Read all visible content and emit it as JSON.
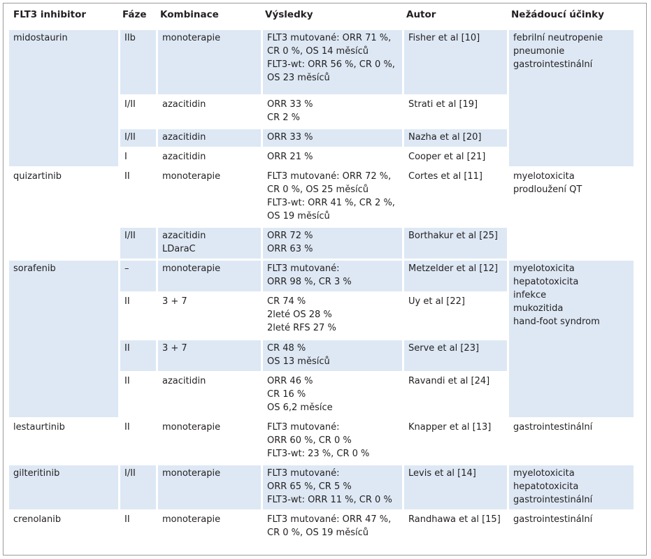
{
  "headers": [
    "FLT3 inhibitor",
    "Fáze",
    "Kombinace",
    "Výsledky",
    "Autor",
    "Nežádoucí účinky"
  ],
  "groups": [
    {
      "drug": "midostaurin",
      "adverse": [
        "febrilní neutropenie",
        "pneumonie",
        "gastrointestinální"
      ],
      "rows": [
        {
          "phase": "IIb",
          "combo": [
            "monoterapie"
          ],
          "results": [
            "FLT3 mutované: ORR 71 %,",
            "CR 0 %, OS 14 měsíců",
            "FLT3-wt: ORR 56 %, CR 0 %,",
            "OS 23 měsíců"
          ],
          "author": "Fisher et al [10]"
        },
        {
          "phase": "I/II",
          "combo": [
            "azacitidin"
          ],
          "results": [
            "ORR 33 %",
            "CR 2 %"
          ],
          "author": "Strati et al [19]"
        },
        {
          "phase": "I/II",
          "combo": [
            "azacitidin"
          ],
          "results": [
            "ORR 33 %"
          ],
          "author": "Nazha et al [20]"
        },
        {
          "phase": "I",
          "combo": [
            "azacitidin"
          ],
          "results": [
            "ORR 21 %"
          ],
          "author": "Cooper et al [21]"
        }
      ]
    },
    {
      "drug": "quizartinib",
      "adverse": [
        "myelotoxicita",
        "prodloužení QT"
      ],
      "rows": [
        {
          "phase": "II",
          "combo": [
            "monoterapie"
          ],
          "results": [
            "FLT3 mutované: ORR 72 %,",
            "CR 0 %, OS 25 měsíců",
            "FLT3-wt: ORR 41 %, CR 2 %,",
            "OS 19 měsíců"
          ],
          "author": "Cortes et al [11]"
        },
        {
          "phase": "I/II",
          "combo": [
            "azacitidin",
            "LDaraC"
          ],
          "results": [
            "ORR 72 %",
            "ORR 63 %"
          ],
          "author": "Borthakur et al [25]"
        }
      ]
    },
    {
      "drug": "sorafenib",
      "adverse": [
        "myelotoxicita",
        "hepatotoxicita",
        "infekce",
        "mukozitida",
        "hand-foot syndrom"
      ],
      "rows": [
        {
          "phase": "–",
          "combo": [
            "monoterapie"
          ],
          "results": [
            "FLT3 mutované:",
            "ORR 98 %, CR 3 %"
          ],
          "author": "Metzelder et al [12]"
        },
        {
          "phase": "II",
          "combo": [
            "3 + 7"
          ],
          "results": [
            "CR 74 %",
            "2leté OS 28 %",
            "2leté RFS 27 %"
          ],
          "author": "Uy et al [22]"
        },
        {
          "phase": "II",
          "combo": [
            "3 + 7"
          ],
          "results": [
            "CR 48 %",
            "OS 13 měsíců"
          ],
          "author": "Serve et al [23]"
        },
        {
          "phase": "II",
          "combo": [
            "azacitidin"
          ],
          "results": [
            "ORR 46 %",
            "CR 16 %",
            "OS 6,2 měsíce"
          ],
          "author": "Ravandi et al [24]"
        }
      ]
    },
    {
      "drug": "lestaurtinib",
      "adverse": [
        "gastrointestinální"
      ],
      "rows": [
        {
          "phase": "II",
          "combo": [
            "monoterapie"
          ],
          "results": [
            "FLT3 mutované:",
            "ORR 60 %, CR 0 %",
            "FLT3-wt: 23 %, CR 0 %"
          ],
          "author": "Knapper et al [13]"
        }
      ]
    },
    {
      "drug": "gilteritinib",
      "adverse": [
        "myelotoxicita",
        "hepatotoxicita",
        "gastrointestinální"
      ],
      "rows": [
        {
          "phase": "I/II",
          "combo": [
            "monoterapie"
          ],
          "results": [
            "FLT3 mutované:",
            "ORR 65 %, CR 5 %",
            "FLT3-wt: ORR 11 %, CR 0 %"
          ],
          "author": "Levis et al [14]"
        }
      ]
    },
    {
      "drug": "crenolanib",
      "adverse": [
        "gastrointestinální"
      ],
      "rows": [
        {
          "phase": "II",
          "combo": [
            "monoterapie"
          ],
          "results": [
            "FLT3 mutované: ORR 47 %,",
            "CR 0 %, OS 19 měsíců"
          ],
          "author": "Randhawa et al [15]"
        }
      ]
    }
  ]
}
